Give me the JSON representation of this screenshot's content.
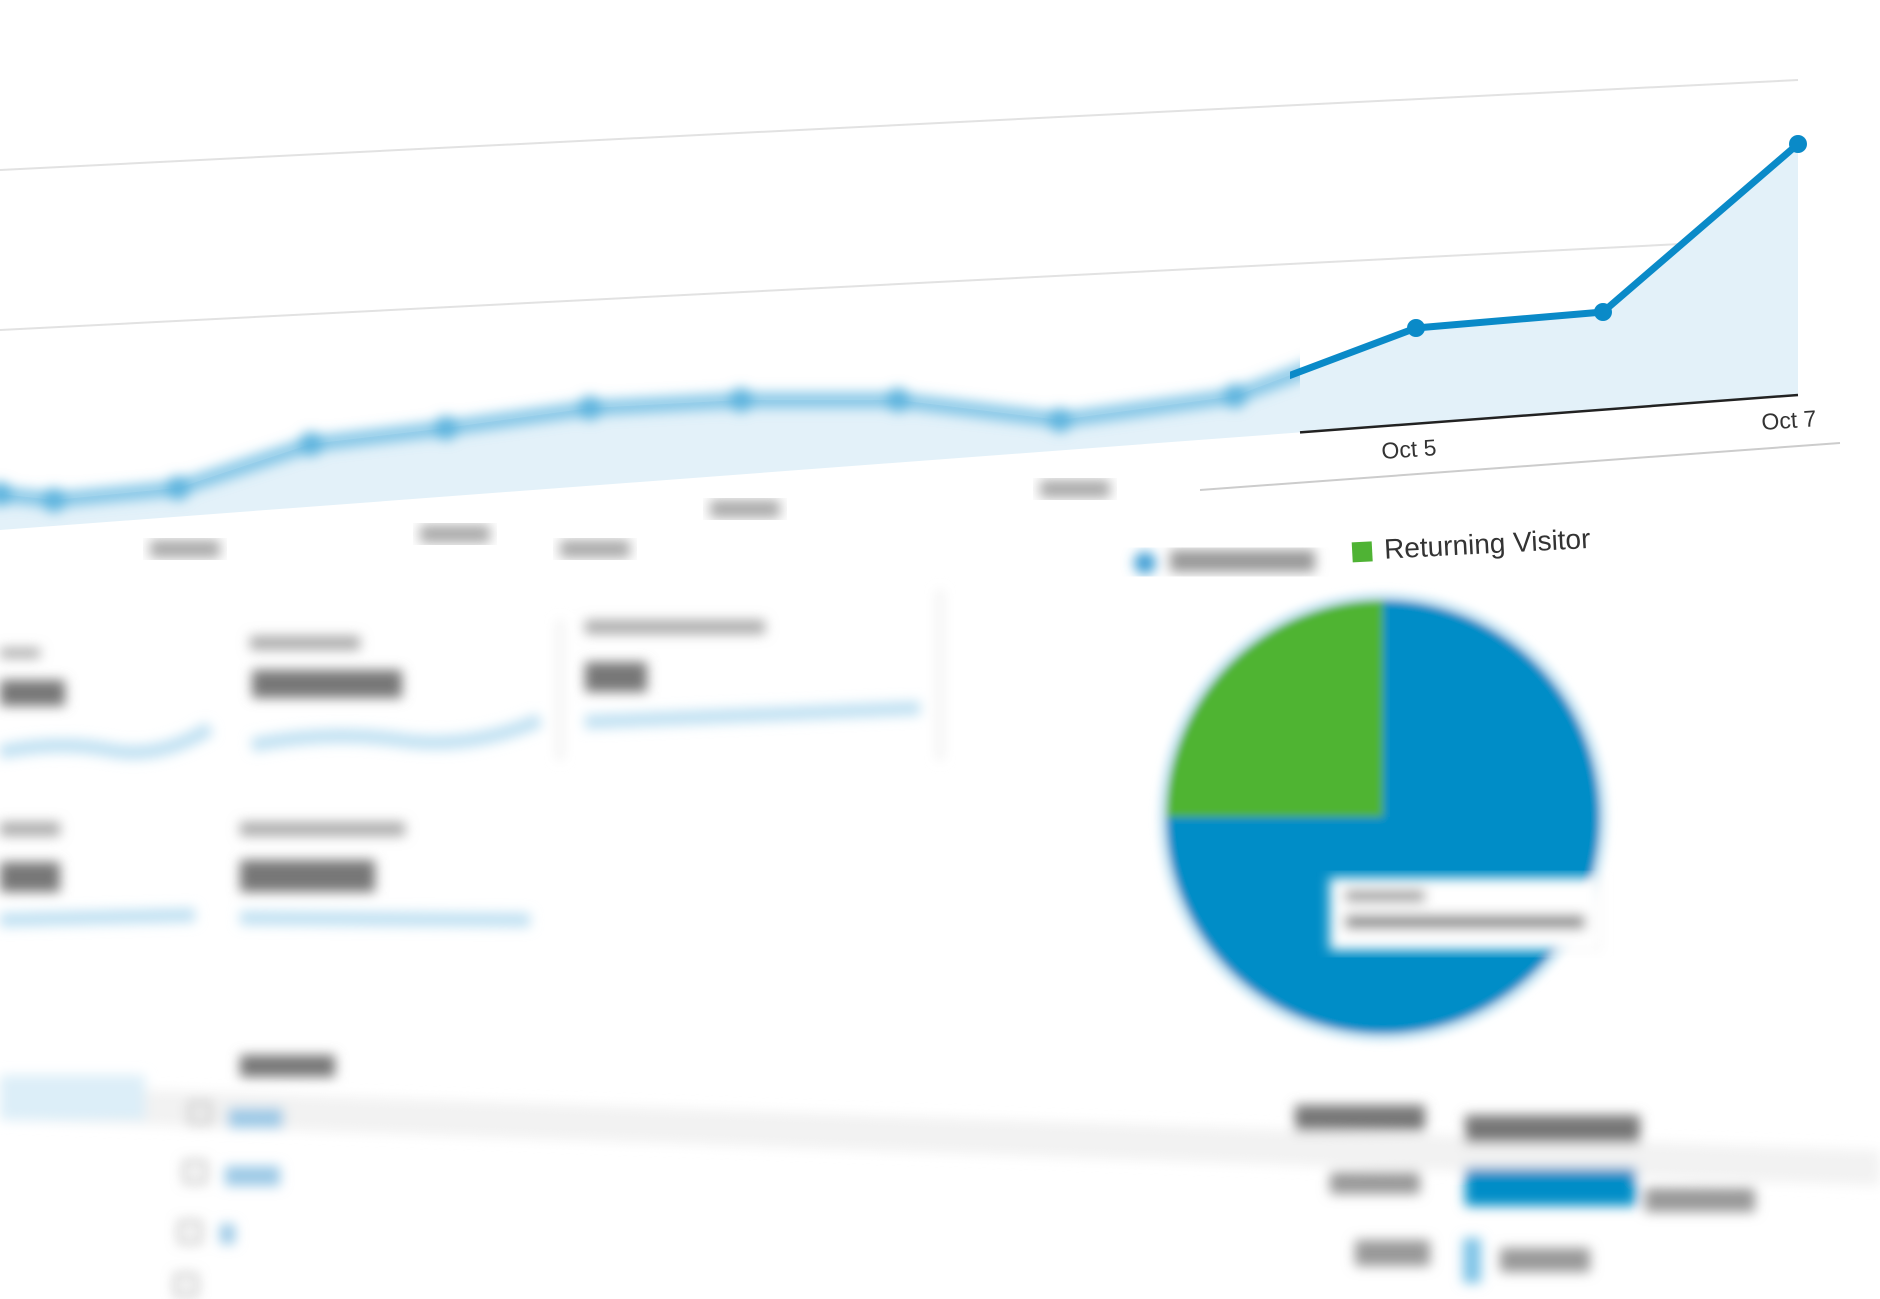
{
  "chart_data": [
    {
      "type": "area",
      "categories": [
        "",
        "",
        "",
        "",
        "",
        "",
        "",
        "",
        "",
        "",
        "Oct 5",
        "",
        "Oct 7"
      ],
      "values": [
        16.5,
        15,
        18,
        29,
        33,
        38,
        40,
        40,
        35,
        41,
        58,
        62,
        104
      ],
      "title": "",
      "xlabel": "",
      "ylabel": "",
      "grid": true,
      "colors": {
        "line": "#0a8ac8",
        "fill": "#e3f1f9",
        "grid": "#e2e2e2",
        "axis": "#222222"
      }
    },
    {
      "type": "pie",
      "legend": [
        {
          "label": "",
          "color": "#3c9dd4"
        },
        {
          "label": "Returning Visitor",
          "color": "#4fb334"
        }
      ],
      "slices": [
        {
          "label": "",
          "value": 75,
          "color": "#058dc7"
        },
        {
          "label": "Returning Visitor",
          "value": 25,
          "color": "#50b432"
        }
      ],
      "legend_position": "top"
    }
  ],
  "table": {
    "bar_color": "#058dc7",
    "rows": [
      {
        "share": 0.9
      },
      {
        "share": 0.06
      }
    ]
  }
}
